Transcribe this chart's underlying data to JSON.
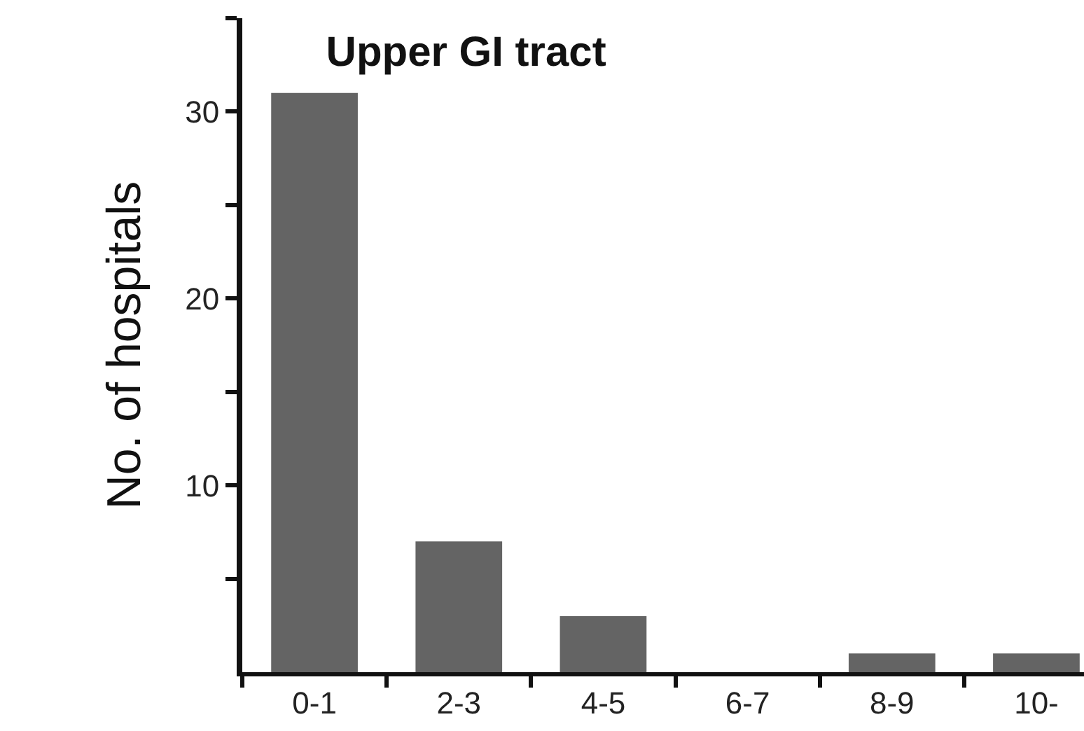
{
  "chart_data": {
    "type": "bar",
    "title": "Upper GI tract",
    "ylabel": "No. of hospitals",
    "categories": [
      "0-1",
      "2-3",
      "4-5",
      "6-7",
      "8-9",
      "10-"
    ],
    "values": [
      31,
      7,
      3,
      0,
      1,
      1
    ],
    "color": "#646464",
    "ylim": [
      0,
      35
    ],
    "yticks": [
      {
        "value": 5,
        "label": null
      },
      10,
      {
        "value": 15,
        "label": null
      },
      20,
      {
        "value": 25,
        "label": null
      },
      30,
      {
        "value": 35,
        "label": null
      }
    ],
    "grid": false,
    "legend": false
  }
}
